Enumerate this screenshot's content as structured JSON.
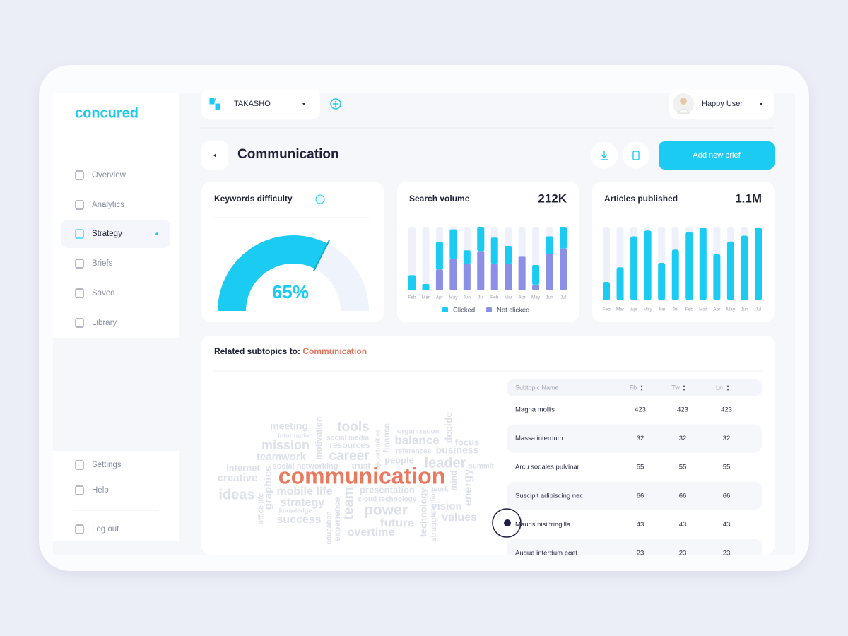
{
  "sidebar": {
    "logo": "concured",
    "nav": [
      "Overview",
      "Analytics",
      "Strategy",
      "Briefs",
      "Saved",
      "Library"
    ],
    "footer_nav": [
      "Settings",
      "Help",
      "Log out"
    ]
  },
  "topbar": {
    "workspace": "TAKASHO",
    "user": "Happy User"
  },
  "page": {
    "title": "Communication",
    "add_button": "Add new brief"
  },
  "chart_data": [
    {
      "type": "gauge",
      "title": "Keywords difficulty",
      "values": [
        65
      ],
      "value_labels": [
        "65%"
      ],
      "ylim": [
        0,
        100
      ],
      "color": "#1ccbf2"
    },
    {
      "type": "stacked-bar",
      "title": "Search volume",
      "headline": "212K",
      "categories": [
        "Feb",
        "Mar",
        "Apr",
        "May",
        "Jun",
        "Jul",
        "Feb",
        "Mar",
        "Apr",
        "May",
        "Jun",
        "Jul"
      ],
      "series": [
        {
          "name": "Clicked",
          "color": "#1ccbf2",
          "values": [
            24,
            10,
            43,
            46,
            21,
            38,
            41,
            28,
            0,
            31,
            28,
            34
          ]
        },
        {
          "name": "Not clicked",
          "color": "#8b8fe6",
          "values": [
            0,
            0,
            33,
            50,
            42,
            62,
            42,
            42,
            54,
            9,
            57,
            66
          ]
        }
      ],
      "ylim": [
        0,
        100
      ]
    },
    {
      "type": "bar",
      "title": "Articles published",
      "headline": "1.1M",
      "categories": [
        "Feb",
        "Mar",
        "Apr",
        "May",
        "Jun",
        "Jul",
        "Feb",
        "Mar",
        "Apr",
        "May",
        "Jun",
        "Jul"
      ],
      "values": [
        25,
        45,
        87,
        95,
        51,
        69,
        93,
        99,
        63,
        80,
        88,
        99
      ],
      "color": "#1ccbf2",
      "ylim": [
        0,
        100
      ]
    }
  ],
  "subtopics": {
    "title": "Related subtopics to:",
    "topic": "Communication",
    "word_cloud": [
      "meeting",
      "information",
      "tools",
      "organization",
      "decide",
      "mission",
      "social media",
      "finance",
      "balance",
      "focus",
      "resources",
      "references",
      "business",
      "teamwork",
      "career",
      "people",
      "leader",
      "internet",
      "social networking",
      "trust",
      "summit",
      "creative",
      "communication",
      "energy",
      "mind",
      "graphics",
      "mobile life",
      "presentation",
      "work",
      "ideas",
      "cloud technology",
      "strategy",
      "vision",
      "power",
      "knowledge",
      "team",
      "success",
      "future",
      "values",
      "technology",
      "experience",
      "overtime",
      "motivation",
      "opportunities",
      "struggle",
      "office life",
      "education",
      "attention"
    ],
    "table": {
      "columns": [
        "Subtopic Name",
        "Fb",
        "Tw",
        "Ln"
      ],
      "rows": [
        [
          "Magna mollis",
          423,
          423,
          423
        ],
        [
          "Massa interdum",
          32,
          32,
          32
        ],
        [
          "Arcu sodales pulvinar",
          55,
          55,
          55
        ],
        [
          "Suscipit adipiscing nec",
          66,
          66,
          66
        ],
        [
          "Mauris nisi fringilla",
          43,
          43,
          43
        ],
        [
          "Augue interdum eget",
          23,
          23,
          23
        ]
      ]
    }
  }
}
